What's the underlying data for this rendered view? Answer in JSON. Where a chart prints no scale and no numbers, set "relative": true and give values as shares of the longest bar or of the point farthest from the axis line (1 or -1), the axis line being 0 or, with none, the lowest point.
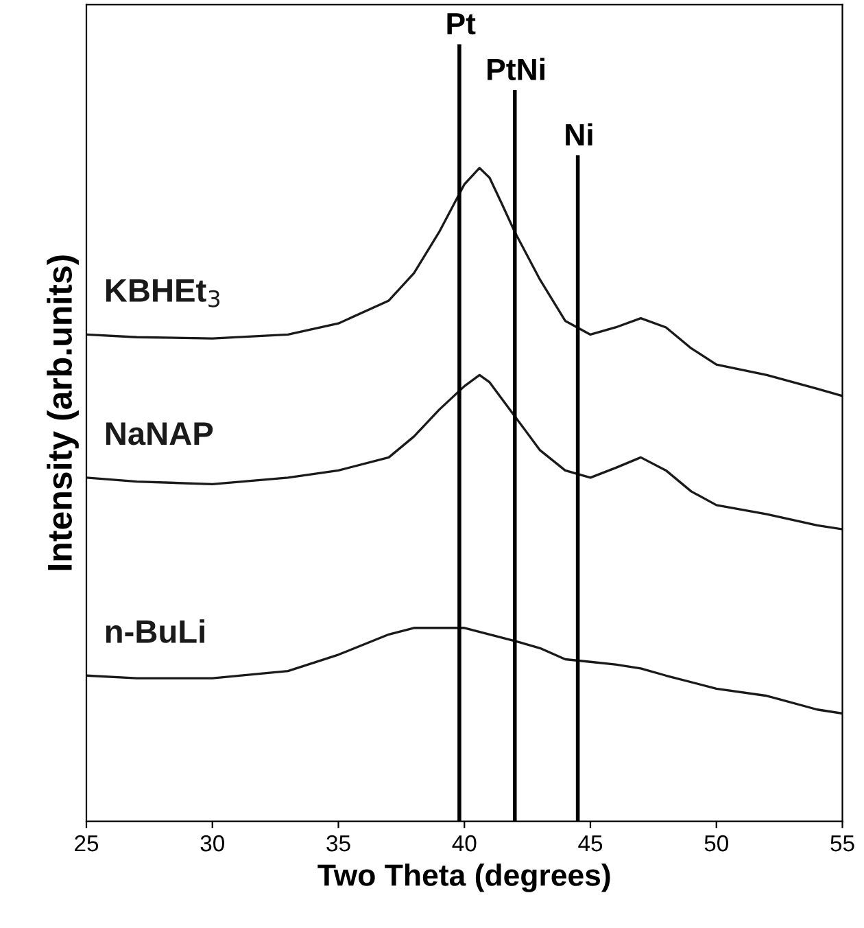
{
  "chart_data": {
    "type": "line",
    "relative": true,
    "xlabel": "Two Theta (degrees)",
    "ylabel": "Intensity (arb.units)",
    "xlim": [
      25,
      55
    ],
    "xticks": [
      25,
      30,
      35,
      40,
      45,
      50,
      55
    ],
    "grid": false,
    "legend": false,
    "marker": "none",
    "line_style": "solid",
    "series": [
      {
        "name": "KBHEt$_{3}$",
        "color": "#1a1a1a",
        "x": [
          25,
          27,
          30,
          33,
          35,
          37,
          38,
          39,
          40,
          40.6,
          41,
          41.5,
          42,
          43,
          44,
          45,
          46,
          47,
          48,
          49,
          50,
          52,
          54,
          55
        ],
        "values": [
          0.745,
          0.741,
          0.739,
          0.745,
          0.762,
          0.797,
          0.839,
          0.902,
          0.975,
          1.0,
          0.985,
          0.944,
          0.902,
          0.829,
          0.766,
          0.745,
          0.756,
          0.77,
          0.756,
          0.724,
          0.699,
          0.683,
          0.662,
          0.651
        ]
      },
      {
        "name": "NaNAP",
        "color": "#1a1a1a",
        "x": [
          25,
          27,
          30,
          33,
          35,
          37,
          38,
          39,
          40,
          40.6,
          41,
          42,
          43,
          44,
          45,
          46,
          47,
          48,
          49,
          50,
          52,
          54,
          55
        ],
        "values": [
          0.526,
          0.52,
          0.516,
          0.526,
          0.537,
          0.557,
          0.589,
          0.63,
          0.666,
          0.683,
          0.672,
          0.62,
          0.568,
          0.537,
          0.526,
          0.541,
          0.557,
          0.537,
          0.505,
          0.484,
          0.47,
          0.453,
          0.447
        ]
      },
      {
        "name": "n-BuLi",
        "color": "#1a1a1a",
        "x": [
          25,
          27,
          30,
          33,
          35,
          37,
          38,
          39,
          40,
          41,
          42,
          43,
          44,
          45,
          46,
          47,
          48,
          50,
          52,
          54,
          55
        ],
        "values": [
          0.223,
          0.219,
          0.219,
          0.23,
          0.255,
          0.286,
          0.296,
          0.296,
          0.296,
          0.286,
          0.276,
          0.265,
          0.248,
          0.244,
          0.24,
          0.234,
          0.223,
          0.203,
          0.192,
          0.171,
          0.165
        ]
      }
    ],
    "ref_lines": [
      {
        "axis": "x",
        "value": 39.8,
        "label": "Pt",
        "color": "#000000",
        "line_style": "solid"
      },
      {
        "axis": "x",
        "value": 42,
        "label": "PtNi",
        "color": "#000000",
        "line_style": "solid"
      },
      {
        "axis": "x",
        "value": 44.5,
        "label": "Ni",
        "color": "#000000",
        "line_style": "solid"
      }
    ]
  }
}
